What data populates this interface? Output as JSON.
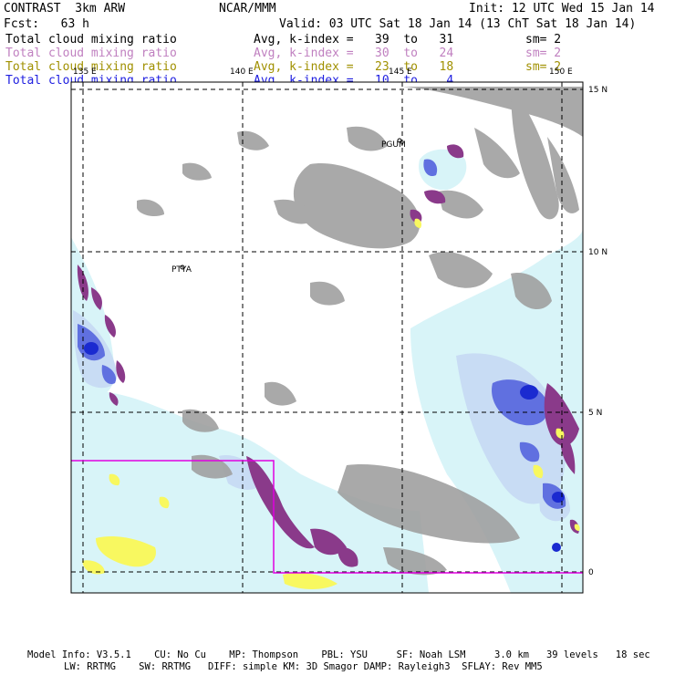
{
  "header": {
    "model_name": "CONTRAST  3km ARW",
    "org": "NCAR/MMM",
    "init": "Init: 12 UTC Wed 15 Jan 14",
    "forecast": "Fcst:   63 h",
    "valid": "Valid: 03 UTC Sat 18 Jan 14 (13 ChT Sat 18 Jan 14)"
  },
  "fields": [
    {
      "name": "Total cloud mixing ratio",
      "range": "Avg, k-index =   39  to   31",
      "smooth": "sm= 2",
      "color": "#000000"
    },
    {
      "name": "Total cloud mixing ratio",
      "range": "Avg, k-index =   30  to   24",
      "smooth": "sm= 2",
      "color": "#c080c0"
    },
    {
      "name": "Total cloud mixing ratio",
      "range": "Avg, k-index =   23  to   18",
      "smooth": "sm= 2",
      "color": "#a09000"
    },
    {
      "name": "Total cloud mixing ratio",
      "range": "Avg, k-index =   10  to    4",
      "smooth": "",
      "color": "#2020e0"
    }
  ],
  "map": {
    "lon_labels": [
      "135 E",
      "140 E",
      "145 E",
      "150 E"
    ],
    "lat_labels": [
      "15 N",
      "10 N",
      "5 N",
      "0"
    ],
    "stations": [
      "PGUM",
      "PTYA"
    ],
    "colors": {
      "low_cloud": "#a0a0a0",
      "cloud_light": "#d8f4f8",
      "cloud_mid": "#c8dcf4",
      "cloud_blue": "#6070e0",
      "cloud_deep": "#1a2ad0",
      "purple": "#8a3a8a",
      "yellow": "#f8f860",
      "box": "#e000e0"
    }
  },
  "footer": {
    "line1": "Model Info: V3.5.1    CU: No Cu    MP: Thompson    PBL: YSU     SF: Noah LSM     3.0 km   39 levels   18 sec",
    "line2": "LW: RRTMG    SW: RRTMG   DIFF: simple KM: 3D Smagor DAMP: Rayleigh3  SFLAY: Rev MM5"
  }
}
